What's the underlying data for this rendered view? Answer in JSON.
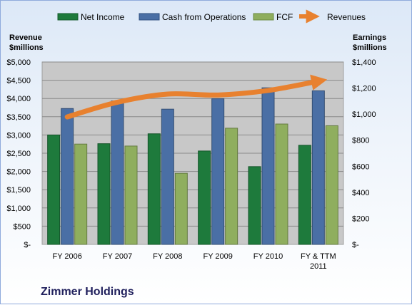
{
  "company": "Zimmer Holdings",
  "chart_data": {
    "type": "bar",
    "categories": [
      "FY 2006",
      "FY 2007",
      "FY 2008",
      "FY 2009",
      "FY 2010",
      "FY & TTM 2011"
    ],
    "left_axis": {
      "title_lines": [
        "Revenue",
        "$millions"
      ],
      "ylim": [
        0,
        5000
      ],
      "ticks": [
        "$-",
        "$500",
        "$1,000",
        "$1,500",
        "$2,000",
        "$2,500",
        "$3,000",
        "$3,500",
        "$4,000",
        "$4,500",
        "$5,000"
      ]
    },
    "right_axis": {
      "title_lines": [
        "Earnings",
        "$millions"
      ],
      "ylim": [
        0,
        1400
      ],
      "ticks": [
        "$-",
        "$200",
        "$400",
        "$600",
        "$800",
        "$1,000",
        "$1,200",
        "$1,400"
      ]
    },
    "grid": "horizontal",
    "legend_placement": "top",
    "series": [
      {
        "name": "Net Income",
        "kind": "bar",
        "axis": "right",
        "color": "#1e7a3c",
        "values": [
          840,
          773,
          849,
          717,
          597,
          761
        ]
      },
      {
        "name": "Cash from Operations",
        "kind": "bar",
        "axis": "right",
        "color": "#4a6fa5",
        "values": [
          1043,
          1101,
          1038,
          1118,
          1202,
          1179
        ]
      },
      {
        "name": "FCF",
        "kind": "bar",
        "axis": "right",
        "color": "#8fae5e",
        "values": [
          770,
          755,
          546,
          892,
          924,
          911
        ]
      },
      {
        "name": "Revenues",
        "kind": "line",
        "axis": "left",
        "color": "#e8812f",
        "values": [
          3495,
          3897,
          4121,
          4095,
          4220,
          4475
        ]
      }
    ]
  }
}
